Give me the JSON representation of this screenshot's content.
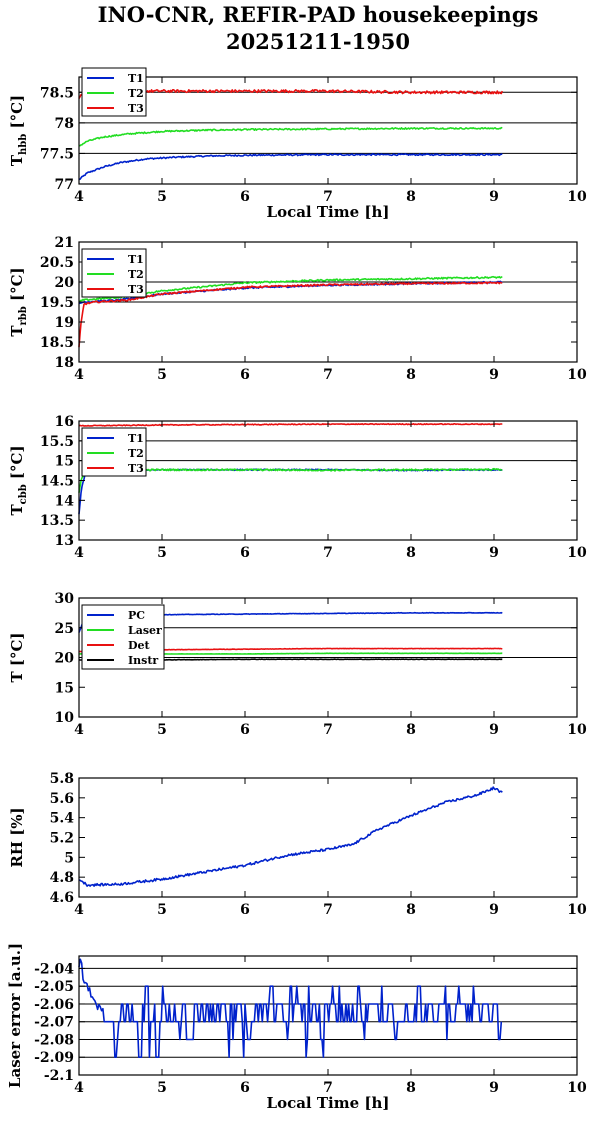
{
  "title_line1": "INO-CNR, REFIR-PAD housekeepings",
  "title_line2": "20251211-1950",
  "colors": {
    "blue": "#0022cc",
    "green": "#22dd22",
    "red": "#e81010",
    "black": "#000000"
  },
  "chart_data": [
    {
      "type": "line",
      "ylabel": {
        "main": "T",
        "sub": "hbb",
        "unit": " [°C]"
      },
      "xlabel": "Local Time [h]",
      "xlim": [
        4,
        10
      ],
      "ylim": [
        77,
        78.75
      ],
      "xticks": [
        4,
        5,
        6,
        7,
        8,
        9,
        10
      ],
      "xtick_labels": [
        "4",
        "5",
        "6",
        "7",
        "8",
        "9",
        "10"
      ],
      "yticks": [
        77,
        77.5,
        78,
        78.5
      ],
      "ytick_labels": [
        "77",
        "77.5",
        "78",
        "78.5"
      ],
      "grid_y": [
        77.5,
        78,
        78.5
      ],
      "legend_position": "top-left",
      "series": [
        {
          "name": "T1",
          "color": "blue",
          "noise": 0.012,
          "x": [
            4.0,
            4.1,
            4.3,
            4.5,
            4.8,
            5.2,
            5.6,
            6.0,
            7.0,
            8.0,
            9.1
          ],
          "y": [
            77.07,
            77.18,
            77.28,
            77.35,
            77.41,
            77.44,
            77.46,
            77.47,
            77.48,
            77.48,
            77.48
          ]
        },
        {
          "name": "T2",
          "color": "green",
          "noise": 0.012,
          "x": [
            4.0,
            4.1,
            4.3,
            4.6,
            5.0,
            5.5,
            6.0,
            7.0,
            8.0,
            9.1
          ],
          "y": [
            77.62,
            77.7,
            77.77,
            77.82,
            77.86,
            77.88,
            77.89,
            77.9,
            77.91,
            77.91
          ]
        },
        {
          "name": "T3",
          "color": "red",
          "noise": 0.022,
          "x": [
            4.0,
            4.02,
            4.1,
            5.0,
            6.0,
            7.0,
            8.0,
            9.1
          ],
          "y": [
            78.38,
            78.47,
            78.52,
            78.52,
            78.52,
            78.52,
            78.5,
            78.5
          ]
        }
      ]
    },
    {
      "type": "line",
      "ylabel": {
        "main": "T",
        "sub": "rbb",
        "unit": " [°C]"
      },
      "xlim": [
        4,
        10
      ],
      "ylim": [
        18,
        21
      ],
      "xticks": [
        4,
        5,
        6,
        7,
        8,
        9,
        10
      ],
      "xtick_labels": [
        "4",
        "5",
        "6",
        "7",
        "8",
        "9",
        "10"
      ],
      "yticks": [
        18,
        18.5,
        19,
        19.5,
        20,
        20.5,
        21
      ],
      "ytick_labels": [
        "18",
        "18.5",
        "19",
        "19.5",
        "20",
        "20.5",
        "21"
      ],
      "grid_y": [
        19.5,
        20
      ],
      "legend_position": "top-left",
      "series": [
        {
          "name": "T1",
          "color": "blue",
          "noise": 0.02,
          "x": [
            4.0,
            4.05,
            4.5,
            5.0,
            6.0,
            7.0,
            8.0,
            9.1
          ],
          "y": [
            19.45,
            19.5,
            19.55,
            19.7,
            19.85,
            19.92,
            19.96,
            20.0
          ]
        },
        {
          "name": "T2",
          "color": "green",
          "noise": 0.02,
          "x": [
            4.0,
            4.05,
            4.5,
            5.0,
            6.0,
            7.0,
            8.0,
            9.1
          ],
          "y": [
            19.5,
            19.55,
            19.62,
            19.78,
            19.98,
            20.05,
            20.08,
            20.12
          ]
        },
        {
          "name": "T3",
          "color": "red",
          "noise": 0.02,
          "x": [
            4.0,
            4.02,
            4.06,
            4.2,
            4.6,
            5.0,
            6.0,
            7.0,
            8.0,
            9.1
          ],
          "y": [
            18.35,
            18.9,
            19.45,
            19.5,
            19.55,
            19.7,
            19.87,
            19.93,
            19.96,
            19.98
          ]
        }
      ]
    },
    {
      "type": "line",
      "ylabel": {
        "main": "T",
        "sub": "cbb",
        "unit": " [°C]"
      },
      "xlim": [
        4,
        10
      ],
      "ylim": [
        13,
        16
      ],
      "xticks": [
        4,
        5,
        6,
        7,
        8,
        9,
        10
      ],
      "xtick_labels": [
        "4",
        "5",
        "6",
        "7",
        "8",
        "9",
        "10"
      ],
      "yticks": [
        13,
        13.5,
        14,
        14.5,
        15,
        15.5,
        16
      ],
      "ytick_labels": [
        "13",
        "13.5",
        "14",
        "14.5",
        "15",
        "15.5",
        "16"
      ],
      "grid_y": [
        15,
        15.5
      ],
      "legend_position": "top-left",
      "series": [
        {
          "name": "T1",
          "color": "blue",
          "noise": 0.015,
          "x": [
            4.0,
            4.03,
            4.08,
            4.2,
            5.0,
            6.0,
            7.0,
            8.0,
            9.1
          ],
          "y": [
            13.65,
            14.3,
            14.7,
            14.76,
            14.77,
            14.77,
            14.77,
            14.76,
            14.77
          ]
        },
        {
          "name": "T2",
          "color": "green",
          "noise": 0.02,
          "x": [
            4.0,
            4.03,
            4.1,
            5.0,
            6.0,
            7.0,
            8.0,
            9.1
          ],
          "y": [
            14.2,
            14.55,
            14.75,
            14.77,
            14.77,
            14.76,
            14.77,
            14.78
          ]
        },
        {
          "name": "T3",
          "color": "red",
          "noise": 0.01,
          "x": [
            4.0,
            4.1,
            5.0,
            6.0,
            7.0,
            8.0,
            9.1
          ],
          "y": [
            15.88,
            15.88,
            15.9,
            15.91,
            15.92,
            15.92,
            15.92
          ]
        }
      ]
    },
    {
      "type": "line",
      "ylabel": {
        "main": "T",
        "sub": "",
        "unit": " [°C]"
      },
      "xlim": [
        4,
        10
      ],
      "ylim": [
        10,
        30
      ],
      "xticks": [
        4,
        5,
        6,
        7,
        8,
        9,
        10
      ],
      "xtick_labels": [
        "4",
        "5",
        "6",
        "7",
        "8",
        "9",
        "10"
      ],
      "yticks": [
        10,
        15,
        20,
        25,
        30
      ],
      "ytick_labels": [
        "10",
        "15",
        "20",
        "25",
        "30"
      ],
      "grid_y": [
        20,
        25
      ],
      "legend_position": "top-left",
      "series": [
        {
          "name": "PC",
          "color": "blue",
          "noise": 0.04,
          "x": [
            4.0,
            4.05,
            4.3,
            5.0,
            6.0,
            7.0,
            8.0,
            9.1
          ],
          "y": [
            24.2,
            26.0,
            26.8,
            27.2,
            27.3,
            27.4,
            27.5,
            27.5
          ]
        },
        {
          "name": "Laser",
          "color": "green",
          "noise": 0.02,
          "x": [
            4.0,
            5.0,
            6.0,
            7.0,
            8.0,
            9.1
          ],
          "y": [
            20.6,
            20.6,
            20.6,
            20.7,
            20.7,
            20.7
          ]
        },
        {
          "name": "Det",
          "color": "red",
          "noise": 0.03,
          "x": [
            4.0,
            4.2,
            5.0,
            6.0,
            7.0,
            8.0,
            9.1
          ],
          "y": [
            21.0,
            21.2,
            21.3,
            21.4,
            21.5,
            21.5,
            21.5
          ]
        },
        {
          "name": "Instr",
          "color": "black",
          "noise": 0.03,
          "x": [
            4.0,
            5.0,
            6.0,
            7.0,
            8.0,
            9.1
          ],
          "y": [
            19.6,
            19.6,
            19.7,
            19.7,
            19.7,
            19.7
          ]
        }
      ]
    },
    {
      "type": "line",
      "ylabel": {
        "main": "RH [%]",
        "sub": "",
        "unit": ""
      },
      "xlim": [
        4,
        10
      ],
      "ylim": [
        4.6,
        5.8
      ],
      "xticks": [
        4,
        5,
        6,
        7,
        8,
        9,
        10
      ],
      "xtick_labels": [
        "4",
        "5",
        "6",
        "7",
        "8",
        "9",
        "10"
      ],
      "yticks": [
        4.6,
        4.8,
        5.0,
        5.2,
        5.4,
        5.6,
        5.8
      ],
      "ytick_labels": [
        "4.6",
        "4.8",
        "5",
        "5.2",
        "5.4",
        "5.6",
        "5.8"
      ],
      "grid_y": [],
      "series": [
        {
          "name": "",
          "color": "blue",
          "noise": 0.012,
          "x": [
            4.0,
            4.1,
            4.5,
            5.0,
            5.5,
            6.0,
            6.5,
            7.0,
            7.3,
            7.6,
            8.0,
            8.4,
            8.8,
            9.0,
            9.1
          ],
          "y": [
            4.78,
            4.72,
            4.73,
            4.78,
            4.85,
            4.92,
            5.02,
            5.08,
            5.13,
            5.28,
            5.42,
            5.55,
            5.63,
            5.7,
            5.65
          ]
        }
      ]
    },
    {
      "type": "line",
      "ylabel": {
        "main": "Laser error [a.u.]",
        "sub": "",
        "unit": ""
      },
      "xlabel": "Local Time [h]",
      "xlim": [
        4,
        10
      ],
      "ylim": [
        -2.1,
        -2.033
      ],
      "xticks": [
        4,
        5,
        6,
        7,
        8,
        9,
        10
      ],
      "xtick_labels": [
        "4",
        "5",
        "6",
        "7",
        "8",
        "9",
        "10"
      ],
      "yticks": [
        -2.1,
        -2.09,
        -2.08,
        -2.07,
        -2.06,
        -2.05,
        -2.04
      ],
      "ytick_labels": [
        "-2.1",
        "-2.09",
        "-2.08",
        "-2.07",
        "-2.06",
        "-2.05",
        "-2.04"
      ],
      "grid_y": [
        -2.09,
        -2.08,
        -2.07,
        -2.06,
        -2.05,
        -2.04
      ],
      "series": [
        {
          "name": "",
          "color": "blue",
          "steps": [
            -2.09,
            -2.08,
            -2.07,
            -2.06,
            -2.05
          ],
          "x": [
            4.0,
            4.02,
            4.05,
            4.1,
            4.15,
            4.2,
            4.3,
            9.1
          ],
          "y": [
            -2.04,
            -2.035,
            -2.045,
            -2.05,
            -2.055,
            -2.06,
            -2.065,
            -2.065
          ]
        }
      ]
    }
  ]
}
